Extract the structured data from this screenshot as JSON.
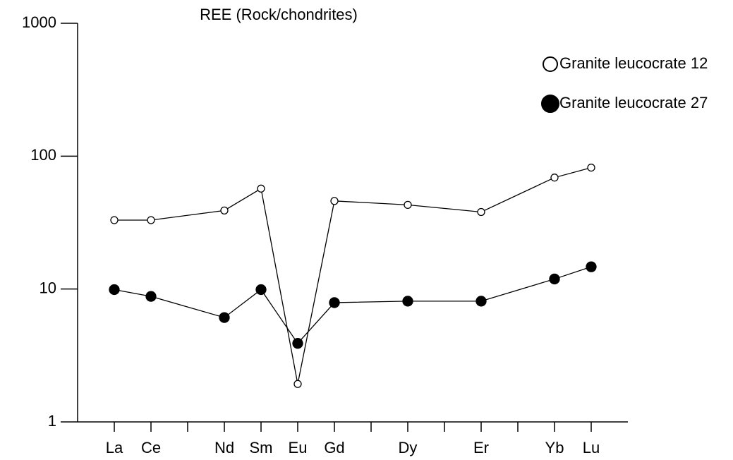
{
  "chart_data": {
    "type": "line",
    "title": "REE  (Rock/chondrites)",
    "x": [
      1,
      2,
      4,
      5,
      6,
      7,
      9,
      11,
      13,
      14
    ],
    "xlim": [
      0,
      15
    ],
    "xticks": [
      {
        "value": 1,
        "label": "La"
      },
      {
        "value": 2,
        "label": "Ce"
      },
      {
        "value": 3,
        "label": null
      },
      {
        "value": 4,
        "label": "Nd"
      },
      {
        "value": 5,
        "label": "Sm"
      },
      {
        "value": 6,
        "label": "Eu"
      },
      {
        "value": 7,
        "label": "Gd"
      },
      {
        "value": 8,
        "label": null
      },
      {
        "value": 9,
        "label": "Dy"
      },
      {
        "value": 10,
        "label": null
      },
      {
        "value": 11,
        "label": "Er"
      },
      {
        "value": 12,
        "label": null
      },
      {
        "value": 13,
        "label": "Yb"
      },
      {
        "value": 14,
        "label": "Lu"
      }
    ],
    "ylim": [
      1,
      1000
    ],
    "yticks": [
      1,
      10,
      100,
      1000
    ],
    "log_y": true,
    "legend": "upper right",
    "series": [
      {
        "name": "Granite leucocrate 12",
        "color": "#000",
        "marker": "open",
        "values": [
          33,
          33,
          39,
          57,
          1.93,
          46,
          43,
          38,
          69,
          82
        ]
      },
      {
        "name": "Granite leucocrate 27",
        "color": "#000",
        "marker": "filled",
        "values": [
          9.9,
          8.8,
          6.1,
          9.9,
          3.9,
          7.9,
          8.1,
          8.1,
          11.9,
          14.7
        ]
      }
    ]
  }
}
